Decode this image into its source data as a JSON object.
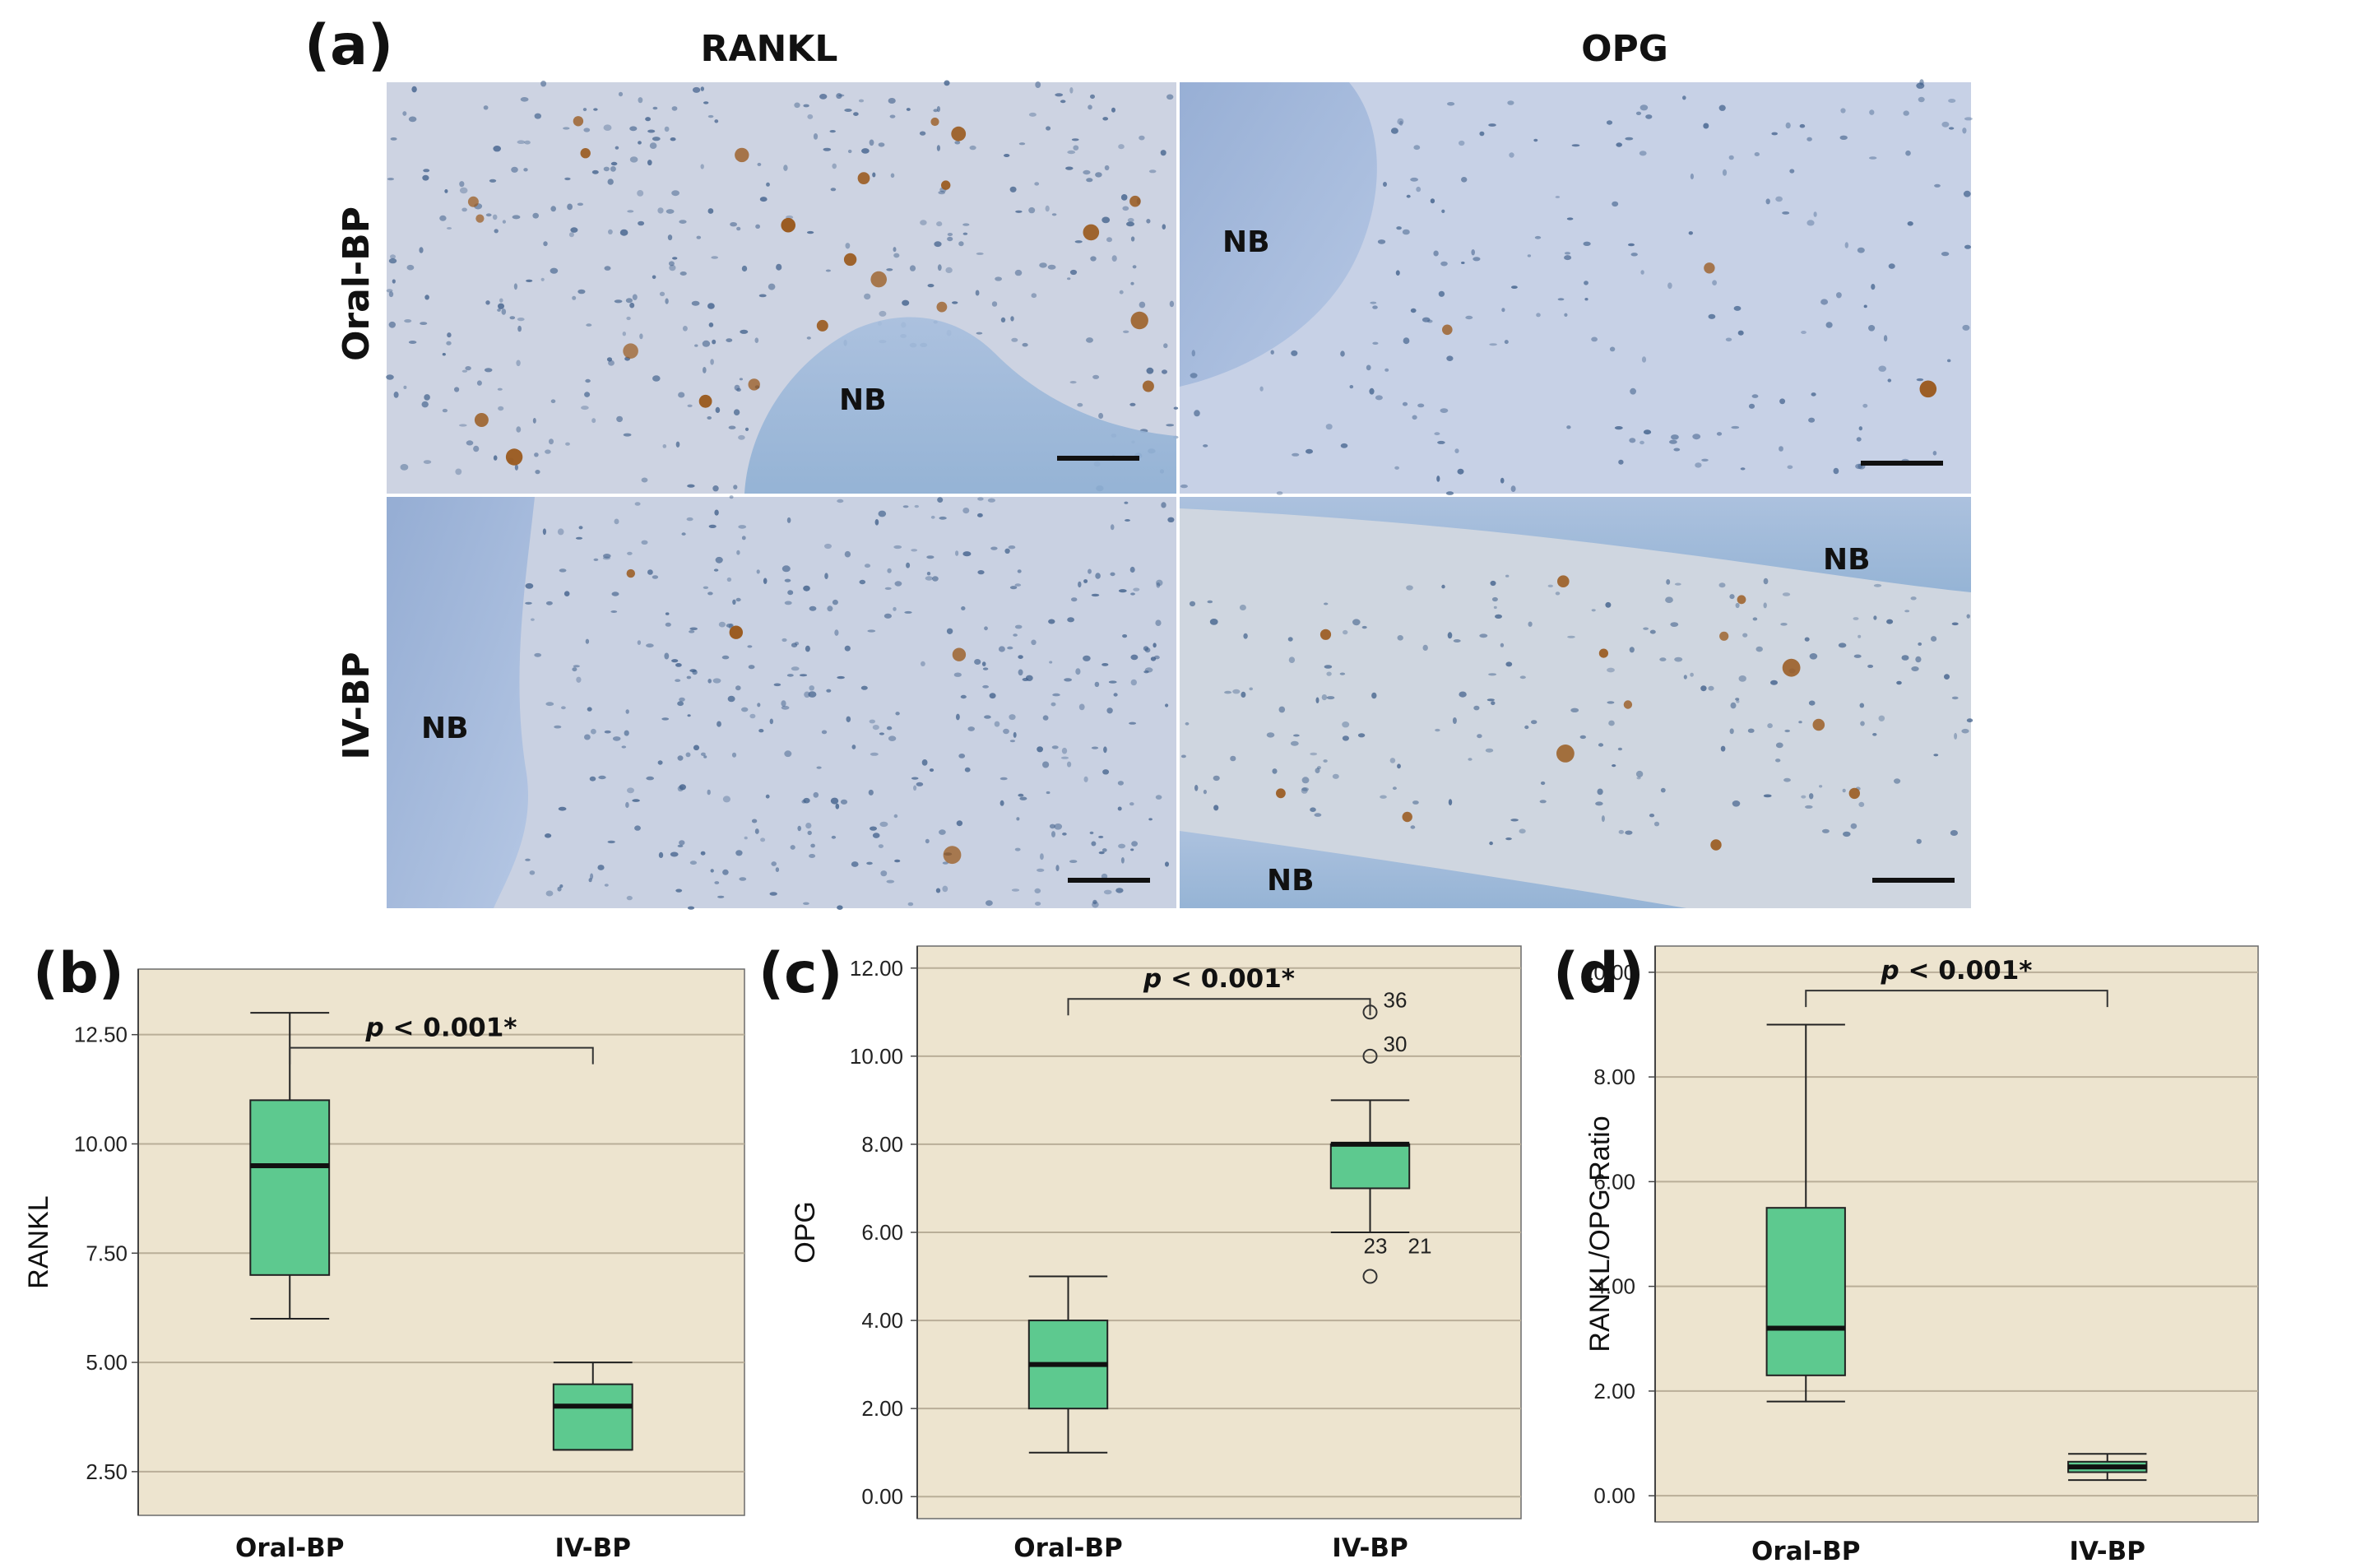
{
  "panel_a": {
    "letter": "(a)",
    "columns": [
      "RANKL",
      "OPG"
    ],
    "rows": [
      "Oral-BP",
      "IV-BP"
    ],
    "bone_label": "NB",
    "colors": {
      "tissue": "#c9d2e3",
      "bone": "#9fb6d8",
      "stain": "#9a5a1e",
      "nuclei": "#3f5f8a"
    }
  },
  "chart_data": [
    {
      "type": "box",
      "letter": "(b)",
      "categories": [
        "Oral-BP",
        "IV-BP"
      ],
      "ylabel": "RANKL",
      "ylim": [
        1.5,
        14.0
      ],
      "yticks": [
        2.5,
        5.0,
        7.5,
        10.0,
        12.5
      ],
      "ytick_labels": [
        "2.50",
        "5.00",
        "7.50",
        "10.00",
        "12.50"
      ],
      "boxes": [
        {
          "min": 6.0,
          "q1": 7.0,
          "median": 9.5,
          "q3": 11.0,
          "max": 13.0
        },
        {
          "min": 3.0,
          "q1": 3.0,
          "median": 4.0,
          "q3": 4.5,
          "max": 5.0
        }
      ],
      "outliers": [],
      "bracket_y": 12.2,
      "significance": {
        "p": "p",
        "rest": " < 0.001*"
      },
      "grid": true,
      "colors": {
        "background": "#ede4cf",
        "box": "#5dc98f",
        "grid": "#b9ae98"
      }
    },
    {
      "type": "box",
      "letter": "(c)",
      "categories": [
        "Oral-BP",
        "IV-BP"
      ],
      "ylabel": "OPG",
      "ylim": [
        -0.5,
        12.5
      ],
      "yticks": [
        0,
        2,
        4,
        6,
        8,
        10,
        12
      ],
      "ytick_labels": [
        "0.00",
        "2.00",
        "4.00",
        "6.00",
        "8.00",
        "10.00",
        "12.00"
      ],
      "boxes": [
        {
          "min": 1.0,
          "q1": 2.0,
          "median": 3.0,
          "q3": 4.0,
          "max": 5.0
        },
        {
          "min": 6.0,
          "q1": 7.0,
          "median": 8.0,
          "q3": 8.0,
          "max": 9.0
        }
      ],
      "outliers": [
        {
          "group": 1,
          "value": 11.0,
          "label": "36"
        },
        {
          "group": 1,
          "value": 10.0,
          "label": "30"
        },
        {
          "group": 1,
          "value": 5.0,
          "label": "23",
          "label2": "21"
        }
      ],
      "bracket_y": 11.3,
      "significance": {
        "p": "p",
        "rest": " < 0.001*"
      },
      "grid": true,
      "colors": {
        "background": "#ede4cf",
        "box": "#5dc98f",
        "grid": "#b9ae98"
      }
    },
    {
      "type": "box",
      "letter": "(d)",
      "categories": [
        "Oral-BP",
        "IV-BP"
      ],
      "ylabel": "RANKL/OPG Ratio",
      "ylim": [
        -0.5,
        10.5
      ],
      "yticks": [
        0,
        2,
        4,
        6,
        8,
        10
      ],
      "ytick_labels": [
        "0.00",
        "2.00",
        "4.00",
        "6.00",
        "8.00",
        "10.00"
      ],
      "boxes": [
        {
          "min": 1.8,
          "q1": 2.3,
          "median": 3.2,
          "q3": 5.5,
          "max": 9.0
        },
        {
          "min": 0.3,
          "q1": 0.45,
          "median": 0.55,
          "q3": 0.65,
          "max": 0.8
        }
      ],
      "outliers": [],
      "bracket_y": 9.65,
      "significance": {
        "p": "p",
        "rest": " < 0.001*"
      },
      "grid": true,
      "colors": {
        "background": "#ede4cf",
        "box": "#5dc98f",
        "grid": "#b9ae98"
      }
    }
  ]
}
